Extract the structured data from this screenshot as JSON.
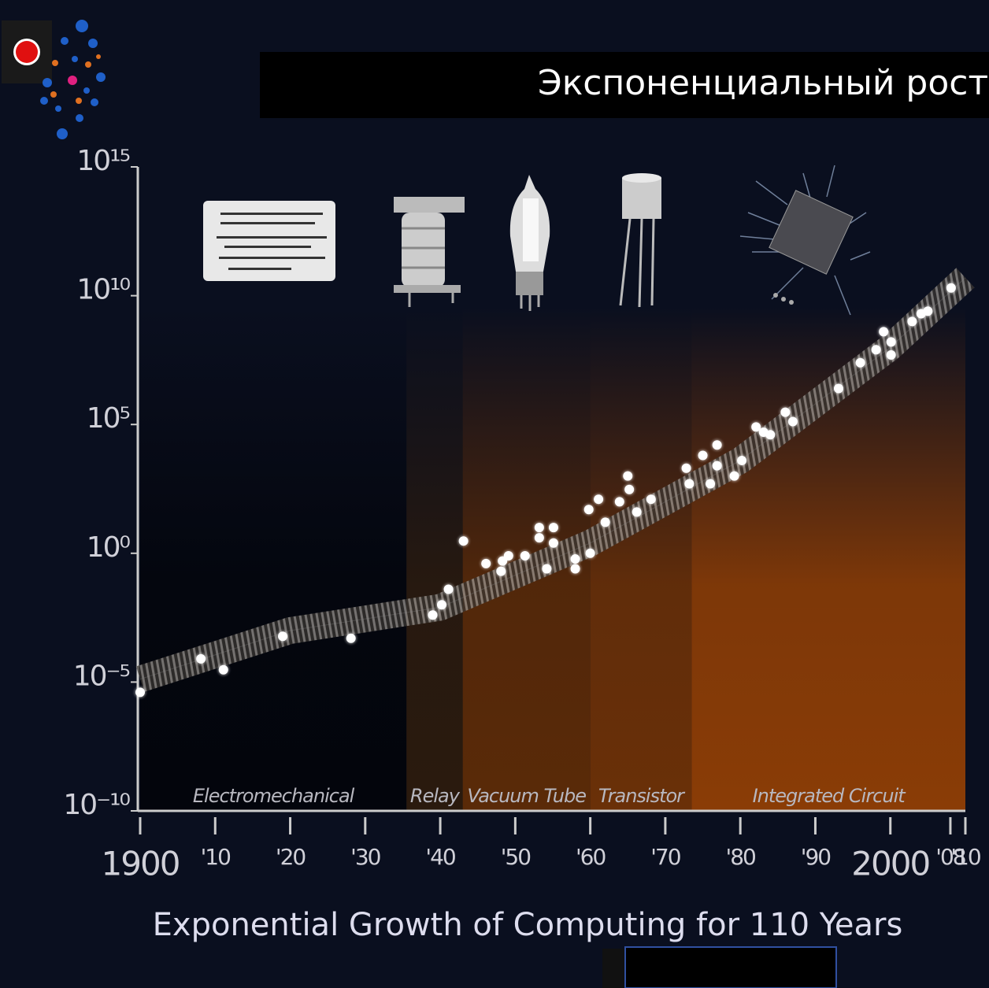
{
  "header": {
    "title": "Экспоненциальный рост"
  },
  "chart_data": {
    "type": "scatter",
    "title": "Exponential Growth of Computing for 110 Years",
    "log_scale": true,
    "xlim": [
      1900,
      2010
    ],
    "ylim": [
      1e-10,
      1000000000000000.0
    ],
    "xticks": [
      1900,
      {
        "value": 1910,
        "label": "'10"
      },
      {
        "value": 1920,
        "label": "'20"
      },
      {
        "value": 1930,
        "label": "'30"
      },
      {
        "value": 1940,
        "label": "'40"
      },
      {
        "value": 1950,
        "label": "'50"
      },
      {
        "value": 1960,
        "label": "'60"
      },
      {
        "value": 1970,
        "label": "'70"
      },
      {
        "value": 1980,
        "label": "'80"
      },
      {
        "value": 1990,
        "label": "'90"
      },
      2000,
      {
        "value": 2008,
        "label": "'08"
      },
      {
        "value": 2010,
        "label": "'10"
      }
    ],
    "yticks": [
      {
        "value": 1e-10,
        "label": "10⁻¹⁰"
      },
      {
        "value": 1e-05,
        "label": "10⁻⁵"
      },
      {
        "value": 1,
        "label": "10⁰"
      },
      {
        "value": 100000,
        "label": "10⁵"
      },
      {
        "value": 10000000000,
        "label": "10¹⁰"
      },
      {
        "value": 1000000000000000,
        "label": "10¹⁵"
      }
    ],
    "regions": [
      {
        "label": "Electromechanical",
        "start": 1900,
        "end": 1935.5,
        "color": "#03050c"
      },
      {
        "label": "Relay",
        "start": 1935.5,
        "end": 1943,
        "color": "#2a1a0e"
      },
      {
        "label": "Vacuum Tube",
        "start": 1943,
        "end": 1960,
        "color": "#5a2a08"
      },
      {
        "label": "Transistor",
        "start": 1960,
        "end": 1973.5,
        "color": "#6a3008"
      },
      {
        "label": "Integrated Circuit",
        "start": 1973.5,
        "end": 2010,
        "color": "#8a3c06"
      }
    ],
    "trend": {
      "x": [
        1900,
        1920,
        1940,
        1960,
        1980,
        2000,
        2010
      ],
      "values": [
        1.3e-05,
        0.001,
        0.008,
        2.5,
        4000,
        100000000.0,
        50000000000.0
      ],
      "color": "#8a8a8a"
    },
    "color": "#ffffff",
    "x": [
      1900,
      1908.1,
      1911.1,
      1919,
      1928.1,
      1939,
      1940.2,
      1941.1,
      1943.1,
      1946.1,
      1948.1,
      1948.3,
      1949.1,
      1951.3,
      1953.2,
      1953.2,
      1954.2,
      1955.1,
      1955.1,
      1958,
      1958,
      1959.8,
      1960,
      1961.1,
      1962,
      1963.9,
      1965,
      1965.2,
      1966.2,
      1968.1,
      1972.8,
      1973.2,
      1975,
      1976,
      1976.9,
      1976.9,
      1979.2,
      1980.2,
      1982.1,
      1983.1,
      1984,
      1986,
      1987,
      1993.1,
      1996,
      1998.1,
      1999.1,
      2000.1,
      2000.1,
      2002.9,
      2004.1,
      2005,
      2008.1
    ],
    "values": [
      4e-06,
      8e-05,
      3e-05,
      0.0006,
      0.0005,
      0.004,
      0.01,
      0.04,
      3,
      0.4,
      0.2,
      0.5,
      0.8,
      0.8,
      10,
      4,
      0.25,
      10,
      2.5,
      0.6,
      0.25,
      50,
      1,
      125,
      16,
      100,
      1000,
      300,
      40,
      125,
      2000,
      500,
      6300,
      500,
      16000,
      2500,
      1000,
      4000,
      80000,
      50000,
      40000,
      300000,
      130000,
      2500000,
      25000000,
      80000000,
      400000000,
      160000000,
      50000000,
      1000000000,
      2000000000,
      2500000000,
      20000000000
    ]
  }
}
